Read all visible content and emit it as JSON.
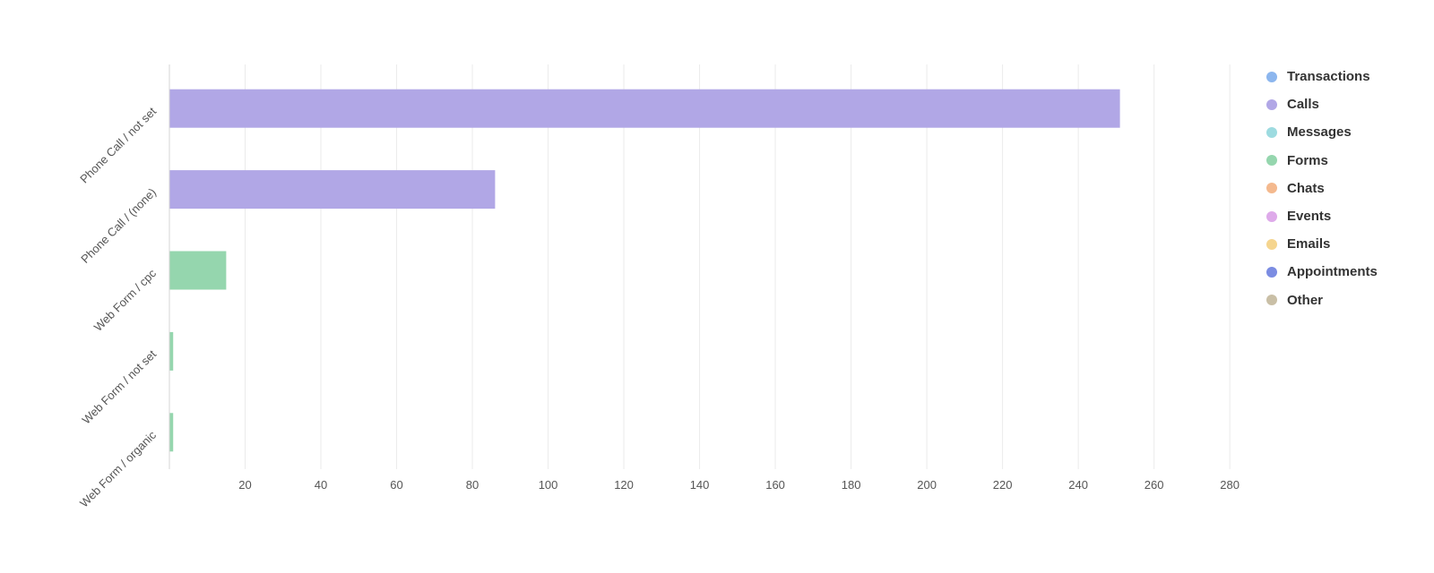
{
  "chart_data": {
    "type": "bar",
    "orientation": "horizontal",
    "categories": [
      "Phone Call / not set",
      "Phone Call / (none)",
      "Web Form / cpc",
      "Web Form / not set",
      "Web Form / organic"
    ],
    "values": [
      251,
      86,
      15,
      1,
      1
    ],
    "bar_series": [
      "Calls",
      "Calls",
      "Forms",
      "Forms",
      "Forms"
    ],
    "xlim": [
      0,
      290
    ],
    "x_ticks": [
      20,
      40,
      60,
      80,
      100,
      120,
      140,
      160,
      180,
      200,
      220,
      240,
      260,
      280
    ],
    "grid": true,
    "legend_position": "top-right",
    "legend": [
      {
        "name": "Transactions",
        "color": "#8cb6ee"
      },
      {
        "name": "Calls",
        "color": "#b1a7e6"
      },
      {
        "name": "Messages",
        "color": "#9ddbe0"
      },
      {
        "name": "Forms",
        "color": "#95d6ae"
      },
      {
        "name": "Chats",
        "color": "#f4b98e"
      },
      {
        "name": "Events",
        "color": "#deaaea"
      },
      {
        "name": "Emails",
        "color": "#f5d58f"
      },
      {
        "name": "Appointments",
        "color": "#7b8ce2"
      },
      {
        "name": "Other",
        "color": "#c9bfa6"
      }
    ]
  }
}
